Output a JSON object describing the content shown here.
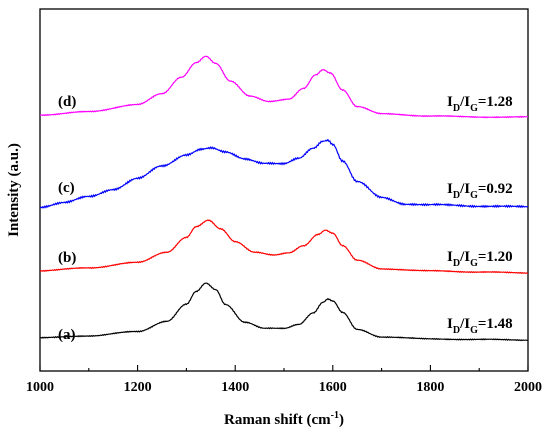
{
  "chart_data": {
    "type": "line",
    "xlabel": "Raman shift (cm",
    "xlabel_sup": "-1",
    "xlabel_end": ")",
    "ylabel": "Intensity (a.u.)",
    "xlim": [
      1000,
      2000
    ],
    "x_ticks": [
      1000,
      1200,
      1400,
      1600,
      1800,
      2000
    ],
    "x_tick_labels": [
      "1000",
      "1200",
      "1400",
      "1600",
      "1800",
      "2000"
    ],
    "y_ticks_shown": false,
    "grid": false,
    "series": [
      {
        "name": "(a)",
        "color": "#000000",
        "ratio_main": "I",
        "ratio_sub1": "D",
        "ratio_sep": "/I",
        "ratio_sub2": "G",
        "ratio_value": "=1.48",
        "x": [
          1000,
          1100,
          1200,
          1260,
          1300,
          1320,
          1340,
          1360,
          1380,
          1420,
          1460,
          1500,
          1530,
          1560,
          1580,
          1590,
          1600,
          1620,
          1650,
          1700,
          1800,
          1900,
          2000
        ],
        "y": [
          0.02,
          0.04,
          0.08,
          0.18,
          0.34,
          0.46,
          0.54,
          0.48,
          0.34,
          0.17,
          0.11,
          0.11,
          0.15,
          0.26,
          0.36,
          0.39,
          0.37,
          0.26,
          0.1,
          0.03,
          0.01,
          0.005,
          0.0
        ]
      },
      {
        "name": "(b)",
        "color": "#ff0000",
        "ratio_main": "I",
        "ratio_sub1": "D",
        "ratio_sep": "/I",
        "ratio_sub2": "G",
        "ratio_value": "=1.20",
        "x": [
          1000,
          1100,
          1200,
          1260,
          1300,
          1320,
          1345,
          1370,
          1400,
          1440,
          1480,
          1510,
          1540,
          1570,
          1585,
          1600,
          1620,
          1650,
          1700,
          1800,
          1900,
          2000
        ],
        "y": [
          0.02,
          0.05,
          0.1,
          0.2,
          0.34,
          0.44,
          0.5,
          0.42,
          0.3,
          0.2,
          0.17,
          0.19,
          0.26,
          0.37,
          0.41,
          0.38,
          0.26,
          0.12,
          0.04,
          0.02,
          0.01,
          0.0
        ]
      },
      {
        "name": "(c)",
        "color": "#0000ff",
        "ratio_main": "I",
        "ratio_sub1": "D",
        "ratio_sep": "/I",
        "ratio_sub2": "G",
        "ratio_value": "=0.92",
        "x": [
          1000,
          1050,
          1100,
          1150,
          1200,
          1250,
          1300,
          1330,
          1350,
          1380,
          1420,
          1460,
          1500,
          1530,
          1560,
          1580,
          1590,
          1600,
          1620,
          1650,
          1700,
          1750,
          1800,
          1900,
          2000
        ],
        "y": [
          0.0,
          0.04,
          0.1,
          0.17,
          0.27,
          0.39,
          0.5,
          0.55,
          0.56,
          0.52,
          0.46,
          0.42,
          0.41,
          0.46,
          0.56,
          0.63,
          0.64,
          0.6,
          0.44,
          0.24,
          0.09,
          0.03,
          0.02,
          0.01,
          0.0
        ]
      },
      {
        "name": "(d)",
        "color": "#ff00ff",
        "ratio_main": "I",
        "ratio_sub1": "D",
        "ratio_sep": "/I",
        "ratio_sub2": "G",
        "ratio_value": "=1.28",
        "x": [
          1000,
          1100,
          1200,
          1250,
          1290,
          1320,
          1340,
          1360,
          1390,
          1430,
          1470,
          1510,
          1540,
          1565,
          1580,
          1595,
          1620,
          1650,
          1700,
          1800,
          1900,
          2000
        ],
        "y": [
          0.02,
          0.05,
          0.12,
          0.22,
          0.38,
          0.52,
          0.58,
          0.51,
          0.34,
          0.2,
          0.15,
          0.17,
          0.27,
          0.4,
          0.45,
          0.42,
          0.26,
          0.1,
          0.03,
          0.01,
          0.0,
          0.0
        ]
      }
    ]
  }
}
